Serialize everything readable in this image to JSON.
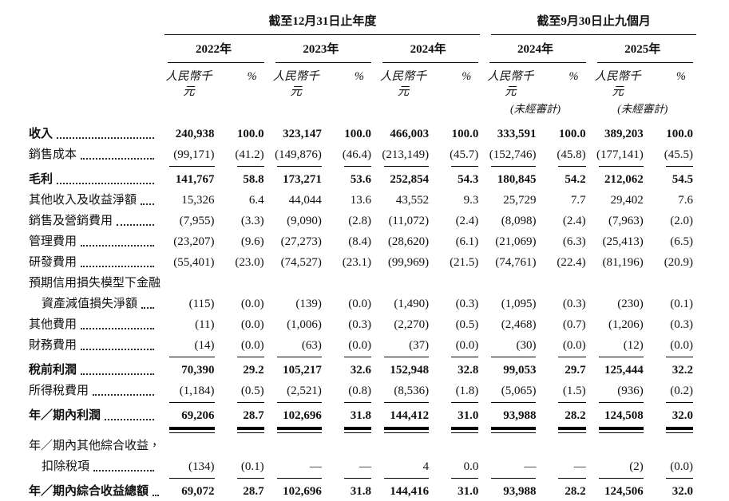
{
  "document": {
    "language": "zh-Hant",
    "period_headers": [
      {
        "label": "截至12月31日止年度"
      },
      {
        "label": "截至9月30日止九個月"
      }
    ],
    "year_headers": [
      "2022年",
      "2023年",
      "2024年",
      "2024年",
      "2025年"
    ],
    "unit_label": "人民幣千元",
    "percent_label": "%",
    "unaudited_note": "(未經審計)",
    "rows": [
      {
        "label": "收入",
        "bold": true,
        "leader": true,
        "values": [
          "240,938",
          "100.0",
          "323,147",
          "100.0",
          "466,003",
          "100.0",
          "333,591",
          "100.0",
          "389,203",
          "100.0"
        ]
      },
      {
        "label": "銷售成本",
        "leader": true,
        "rule": "single",
        "values": [
          "(99,171)",
          "(41.2)",
          "(149,876)",
          "(46.4)",
          "(213,149)",
          "(45.7)",
          "(152,746)",
          "(45.8)",
          "(177,141)",
          "(45.5)"
        ]
      },
      {
        "label": "毛利",
        "bold": true,
        "leader": true,
        "values": [
          "141,767",
          "58.8",
          "173,271",
          "53.6",
          "252,854",
          "54.3",
          "180,845",
          "54.2",
          "212,062",
          "54.5"
        ]
      },
      {
        "label": "其他收入及收益淨額",
        "leader": true,
        "values": [
          "15,326",
          "6.4",
          "44,044",
          "13.6",
          "43,552",
          "9.3",
          "25,729",
          "7.7",
          "29,402",
          "7.6"
        ]
      },
      {
        "label": "銷售及營銷費用",
        "leader": true,
        "values": [
          "(7,955)",
          "(3.3)",
          "(9,090)",
          "(2.8)",
          "(11,072)",
          "(2.4)",
          "(8,098)",
          "(2.4)",
          "(7,963)",
          "(2.0)"
        ]
      },
      {
        "label": "管理費用",
        "leader": true,
        "values": [
          "(23,207)",
          "(9.6)",
          "(27,273)",
          "(8.4)",
          "(28,620)",
          "(6.1)",
          "(21,069)",
          "(6.3)",
          "(25,413)",
          "(6.5)"
        ]
      },
      {
        "label": "研發費用",
        "leader": true,
        "values": [
          "(55,401)",
          "(23.0)",
          "(74,527)",
          "(23.1)",
          "(99,969)",
          "(21.5)",
          "(74,761)",
          "(22.4)",
          "(81,196)",
          "(20.9)"
        ]
      },
      {
        "label": "預期信用損失模型下金融",
        "leader": false,
        "values": null
      },
      {
        "label": "資產減值損失淨額",
        "indent": true,
        "leader": true,
        "values": [
          "(115)",
          "(0.0)",
          "(139)",
          "(0.0)",
          "(1,490)",
          "(0.3)",
          "(1,095)",
          "(0.3)",
          "(230)",
          "(0.1)"
        ]
      },
      {
        "label": "其他費用",
        "leader": true,
        "values": [
          "(11)",
          "(0.0)",
          "(1,006)",
          "(0.3)",
          "(2,270)",
          "(0.5)",
          "(2,468)",
          "(0.7)",
          "(1,206)",
          "(0.3)"
        ]
      },
      {
        "label": "財務費用",
        "leader": true,
        "rule": "single",
        "values": [
          "(14)",
          "(0.0)",
          "(63)",
          "(0.0)",
          "(37)",
          "(0.0)",
          "(30)",
          "(0.0)",
          "(12)",
          "(0.0)"
        ]
      },
      {
        "label": "稅前利潤",
        "bold": true,
        "leader": true,
        "values": [
          "70,390",
          "29.2",
          "105,217",
          "32.6",
          "152,948",
          "32.8",
          "99,053",
          "29.7",
          "125,444",
          "32.2"
        ]
      },
      {
        "label": "所得稅費用",
        "leader": true,
        "rule": "single",
        "values": [
          "(1,184)",
          "(0.5)",
          "(2,521)",
          "(0.8)",
          "(8,536)",
          "(1.8)",
          "(5,065)",
          "(1.5)",
          "(936)",
          "(0.2)"
        ]
      },
      {
        "label": "年／期內利潤",
        "bold": true,
        "leader": true,
        "rule": "double",
        "values": [
          "69,206",
          "28.7",
          "102,696",
          "31.8",
          "144,412",
          "31.0",
          "93,988",
          "28.2",
          "124,508",
          "32.0"
        ]
      },
      {
        "label": "年／期內其他綜合收益，",
        "leader": false,
        "values": null
      },
      {
        "label": "扣除稅項",
        "indent": true,
        "leader": true,
        "rule": "single",
        "values": [
          "(134)",
          "(0.1)",
          "—",
          "—",
          "4",
          "0.0",
          "—",
          "—",
          "(2)",
          "(0.0)"
        ]
      },
      {
        "label": "年／期內綜合收益總額",
        "bold": true,
        "leader": true,
        "rule": "double",
        "values": [
          "69,072",
          "28.7",
          "102,696",
          "31.8",
          "144,416",
          "31.0",
          "93,988",
          "28.2",
          "124,506",
          "32.0"
        ]
      }
    ]
  }
}
